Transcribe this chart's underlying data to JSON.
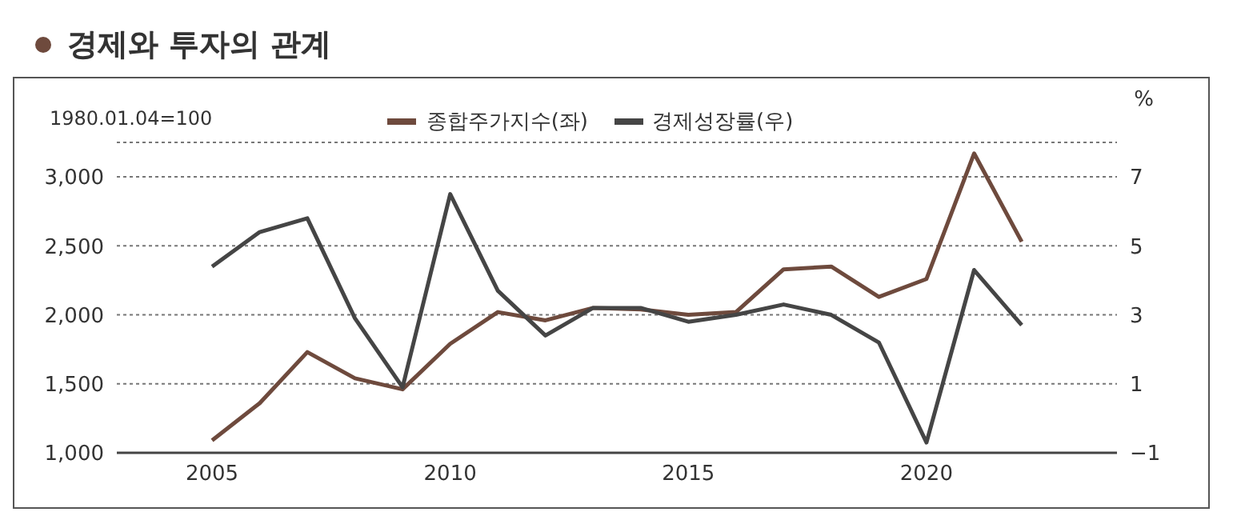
{
  "chart_data": {
    "type": "line",
    "title": "경제와 투자의 관계",
    "ylabel": "1980.01.04=100",
    "y2label": "%",
    "x": [
      2005,
      2006,
      2007,
      2008,
      2009,
      2010,
      2011,
      2012,
      2013,
      2014,
      2015,
      2016,
      2017,
      2018,
      2019,
      2020,
      2021,
      2022
    ],
    "series": [
      {
        "name": "종합주가지수(좌)",
        "color": "#6e4a3d",
        "values": [
          1090,
          1360,
          1730,
          1540,
          1460,
          1790,
          2020,
          1960,
          2050,
          2040,
          2000,
          2020,
          2330,
          2350,
          2130,
          2260,
          3170,
          2530
        ]
      },
      {
        "name": "경제성장률(우)",
        "color": "#454545",
        "axis": "y2",
        "values": [
          4.4,
          5.4,
          5.8,
          2.9,
          0.9,
          6.5,
          3.7,
          2.4,
          3.2,
          3.2,
          2.8,
          3.0,
          3.3,
          3.0,
          2.2,
          -0.7,
          4.3,
          2.7
        ]
      }
    ],
    "xlim": [
      2003,
      2024
    ],
    "xticks": [
      2005,
      2010,
      2015,
      2020
    ],
    "ylim": [
      1000,
      3250
    ],
    "yticks": [
      {
        "value": 1000,
        "label": "1,000"
      },
      {
        "value": 1500,
        "label": "1,500"
      },
      {
        "value": 2000,
        "label": "2,000"
      },
      {
        "value": 2500,
        "label": "2,500"
      },
      {
        "value": 3000,
        "label": "3,000"
      }
    ],
    "y2lim": [
      -1,
      8
    ],
    "y2ticks": [
      -1,
      1,
      3,
      5,
      7
    ],
    "grid": "y",
    "legend": "top",
    "marker": "none",
    "line_style": "solid"
  }
}
